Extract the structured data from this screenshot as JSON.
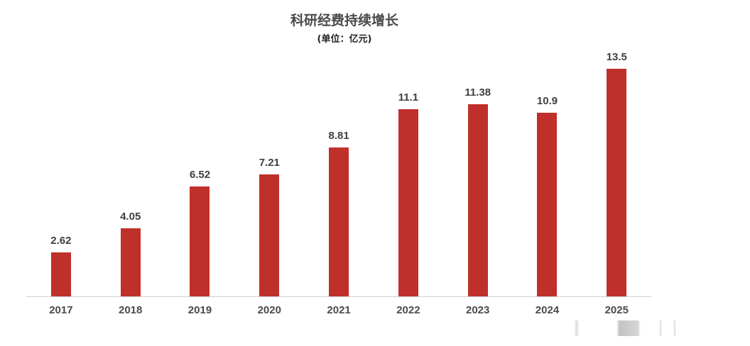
{
  "header": {
    "title": "科研经费持续增长",
    "subtitle": "(单位：亿元)"
  },
  "chart_data": {
    "type": "bar",
    "title": "科研经费持续增长",
    "subtitle": "(单位：亿元)",
    "xlabel": "",
    "ylabel": "亿元",
    "categories": [
      "2017",
      "2018",
      "2019",
      "2020",
      "2021",
      "2022",
      "2023",
      "2024",
      "2025"
    ],
    "values": [
      2.62,
      4.05,
      6.52,
      7.21,
      8.81,
      11.1,
      11.38,
      10.9,
      13.5
    ],
    "value_labels": [
      "2.62",
      "4.05",
      "6.52",
      "7.21",
      "8.81",
      "11.1",
      "11.38",
      "10.9",
      "13.5"
    ],
    "ylim": [
      0,
      14
    ],
    "grid": false,
    "legend": null,
    "bar_color": "#c0302a"
  }
}
